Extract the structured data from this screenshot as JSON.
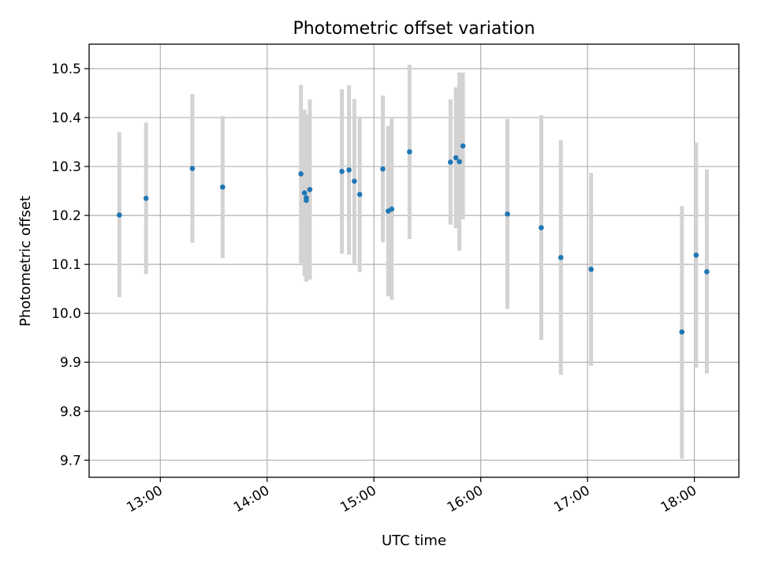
{
  "chart_data": {
    "type": "scatter",
    "title": "Photometric offset variation",
    "xlabel": "UTC time",
    "ylabel": "Photometric offset",
    "x_ticks": [
      "13:00",
      "14:00",
      "15:00",
      "16:00",
      "17:00",
      "18:00"
    ],
    "y_ticks": [
      "9.7",
      "9.8",
      "9.9",
      "10.0",
      "10.1",
      "10.2",
      "10.3",
      "10.4",
      "10.5"
    ],
    "xlim": [
      "12:20",
      "18:25"
    ],
    "ylim": [
      9.665,
      10.55
    ],
    "grid": true,
    "colors": {
      "marker": "#1f77b4",
      "errorbar": "#d3d3d3",
      "grid": "#b0b0b0"
    },
    "series": [
      {
        "points": [
          {
            "t": "12:37",
            "y": 10.201,
            "ylow": 10.033,
            "yhigh": 10.37
          },
          {
            "t": "12:52",
            "y": 10.235,
            "ylow": 10.08,
            "yhigh": 10.39
          },
          {
            "t": "13:18",
            "y": 10.296,
            "ylow": 10.144,
            "yhigh": 10.448
          },
          {
            "t": "13:35",
            "y": 10.258,
            "ylow": 10.113,
            "yhigh": 10.403
          },
          {
            "t": "14:19",
            "y": 10.285,
            "ylow": 10.102,
            "yhigh": 10.467
          },
          {
            "t": "14:21",
            "y": 10.246,
            "ylow": 10.076,
            "yhigh": 10.416
          },
          {
            "t": "14:22",
            "y": 10.236,
            "ylow": 10.066,
            "yhigh": 10.406
          },
          {
            "t": "14:22",
            "y": 10.231,
            "ylow": 10.065,
            "yhigh": 10.397
          },
          {
            "t": "14:24",
            "y": 10.253,
            "ylow": 10.069,
            "yhigh": 10.437
          },
          {
            "t": "14:42",
            "y": 10.29,
            "ylow": 10.122,
            "yhigh": 10.458
          },
          {
            "t": "14:46",
            "y": 10.293,
            "ylow": 10.12,
            "yhigh": 10.466
          },
          {
            "t": "14:49",
            "y": 10.27,
            "ylow": 10.102,
            "yhigh": 10.438
          },
          {
            "t": "14:52",
            "y": 10.243,
            "ylow": 10.084,
            "yhigh": 10.402
          },
          {
            "t": "15:05",
            "y": 10.295,
            "ylow": 10.145,
            "yhigh": 10.445
          },
          {
            "t": "15:08",
            "y": 10.209,
            "ylow": 10.035,
            "yhigh": 10.383
          },
          {
            "t": "15:10",
            "y": 10.213,
            "ylow": 10.028,
            "yhigh": 10.398
          },
          {
            "t": "15:20",
            "y": 10.33,
            "ylow": 10.152,
            "yhigh": 10.508
          },
          {
            "t": "15:43",
            "y": 10.309,
            "ylow": 10.181,
            "yhigh": 10.437
          },
          {
            "t": "15:46",
            "y": 10.318,
            "ylow": 10.174,
            "yhigh": 10.462
          },
          {
            "t": "15:48",
            "y": 10.31,
            "ylow": 10.128,
            "yhigh": 10.492
          },
          {
            "t": "15:50",
            "y": 10.342,
            "ylow": 10.192,
            "yhigh": 10.492
          },
          {
            "t": "16:15",
            "y": 10.203,
            "ylow": 10.009,
            "yhigh": 10.397
          },
          {
            "t": "16:34",
            "y": 10.175,
            "ylow": 9.945,
            "yhigh": 10.405
          },
          {
            "t": "16:45",
            "y": 10.114,
            "ylow": 9.874,
            "yhigh": 10.354
          },
          {
            "t": "17:02",
            "y": 10.09,
            "ylow": 9.893,
            "yhigh": 10.287
          },
          {
            "t": "17:53",
            "y": 9.962,
            "ylow": 9.703,
            "yhigh": 10.219
          },
          {
            "t": "18:01",
            "y": 10.119,
            "ylow": 9.889,
            "yhigh": 10.349
          },
          {
            "t": "18:07",
            "y": 10.085,
            "ylow": 9.877,
            "yhigh": 10.294
          }
        ]
      }
    ]
  }
}
